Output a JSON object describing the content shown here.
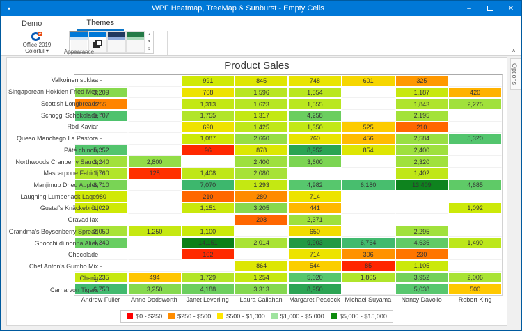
{
  "window": {
    "title": "WPF Heatmap, TreeMap & Sunburst - Empty Cells",
    "qat_caret": "▾",
    "minimize_glyph": "–",
    "close_glyph": "✕"
  },
  "ribbon": {
    "tabs": [
      {
        "label": "Demo"
      },
      {
        "label": "Themes"
      }
    ],
    "selected_tab": "Themes",
    "theme_button": {
      "line1": "Office 2019",
      "line2": "Colorful ▾"
    },
    "group_label": "Appearance",
    "gallery_up": "▲",
    "gallery_down": "▼",
    "gallery_more": "⍗"
  },
  "side": {
    "options_label": "Options",
    "collapse_chevron": "∧"
  },
  "chart_data": {
    "type": "heatmap",
    "title": "Product Sales",
    "columns": [
      "Andrew Fuller",
      "Anne Dodsworth",
      "Janet Leverling",
      "Laura Callahan",
      "Margaret Peacock",
      "Michael Suyama",
      "Nancy Davolio",
      "Robert King"
    ],
    "rows": [
      {
        "label": "Valkoinen suklaa",
        "values": [
          null,
          null,
          991,
          845,
          748,
          601,
          325,
          null
        ]
      },
      {
        "label": "Singaporean Hokkien Fried Mee",
        "values": [
          3209,
          null,
          708,
          1596,
          1554,
          null,
          1187,
          420
        ]
      },
      {
        "label": "Scottish Longbreads",
        "values": [
          255,
          null,
          1313,
          1623,
          1555,
          null,
          1843,
          2275
        ]
      },
      {
        "label": "Schoggi Schokolade",
        "values": [
          5707,
          null,
          1755,
          1317,
          4258,
          null,
          2195,
          null
        ]
      },
      {
        "label": "Röd Kaviar",
        "values": [
          null,
          null,
          690,
          1425,
          1350,
          525,
          210,
          null
        ]
      },
      {
        "label": "Queso Manchego La Pastora",
        "values": [
          null,
          null,
          1087,
          2660,
          760,
          456,
          2584,
          5320
        ]
      },
      {
        "label": "Pâté chinois",
        "values": [
          5352,
          null,
          96,
          878,
          8952,
          854,
          2400,
          null
        ]
      },
      {
        "label": "Northwoods Cranberry Sauce",
        "values": [
          2240,
          2800,
          null,
          2400,
          3600,
          null,
          2320,
          null
        ]
      },
      {
        "label": "Mascarpone Fabioli",
        "values": [
          1760,
          128,
          1408,
          2080,
          null,
          null,
          1402,
          null
        ]
      },
      {
        "label": "Manjimup Dried Apples",
        "values": [
          3710,
          null,
          7070,
          1293,
          4982,
          6180,
          13409,
          4685
        ]
      },
      {
        "label": "Laughing Lumberjack Lager",
        "values": [
          980,
          null,
          210,
          280,
          714,
          null,
          null,
          null
        ]
      },
      {
        "label": "Gustaf's Knäckebröd",
        "values": [
          1029,
          null,
          1151,
          3205,
          441,
          null,
          null,
          1092
        ]
      },
      {
        "label": "Gravad lax",
        "values": [
          null,
          null,
          null,
          208,
          2371,
          null,
          null,
          null
        ]
      },
      {
        "label": "Grandma's Boysenberry Spread",
        "values": [
          2050,
          1250,
          1100,
          null,
          650,
          null,
          2295,
          null
        ]
      },
      {
        "label": "Gnocchi di nonna Alice",
        "values": [
          4340,
          null,
          14151,
          2014,
          9903,
          6764,
          4636,
          1490
        ]
      },
      {
        "label": "Chocolade",
        "values": [
          null,
          null,
          102,
          null,
          714,
          306,
          230,
          null
        ]
      },
      {
        "label": "Chef Anton's Gumbo Mix",
        "values": [
          null,
          null,
          null,
          864,
          544,
          85,
          1105,
          null
        ]
      },
      {
        "label": "Chang",
        "values": [
          1235,
          494,
          1729,
          1254,
          5020,
          1805,
          3952,
          2006
        ]
      },
      {
        "label": "Carnarvon Tigers",
        "values": [
          6750,
          3250,
          4188,
          3313,
          8950,
          null,
          5038,
          500
        ]
      }
    ],
    "legend": [
      {
        "label": "$0 - $250",
        "color": "#fe0000"
      },
      {
        "label": "$250 - $500",
        "color": "#ff8c00"
      },
      {
        "label": "$500 - $1,000",
        "color": "#ffe600"
      },
      {
        "label": "$1,000 - $5,000",
        "color": "#9fe39f"
      },
      {
        "label": "$5,000 - $15,000",
        "color": "#0c8a0c"
      }
    ],
    "color_stops": [
      [
        0,
        "#ff1000"
      ],
      [
        130,
        "#ff3000"
      ],
      [
        250,
        "#ff8300"
      ],
      [
        500,
        "#ffc800"
      ],
      [
        700,
        "#eee300"
      ],
      [
        1000,
        "#cfe905"
      ],
      [
        1500,
        "#bce71c"
      ],
      [
        2000,
        "#a9e335"
      ],
      [
        2800,
        "#92dd47"
      ],
      [
        3600,
        "#7cd553"
      ],
      [
        5000,
        "#57c76d"
      ],
      [
        7000,
        "#3eb86e"
      ],
      [
        9000,
        "#2aa352"
      ],
      [
        11000,
        "#188c33"
      ],
      [
        15000,
        "#077d10"
      ]
    ],
    "accent_color": "#0078d7"
  }
}
